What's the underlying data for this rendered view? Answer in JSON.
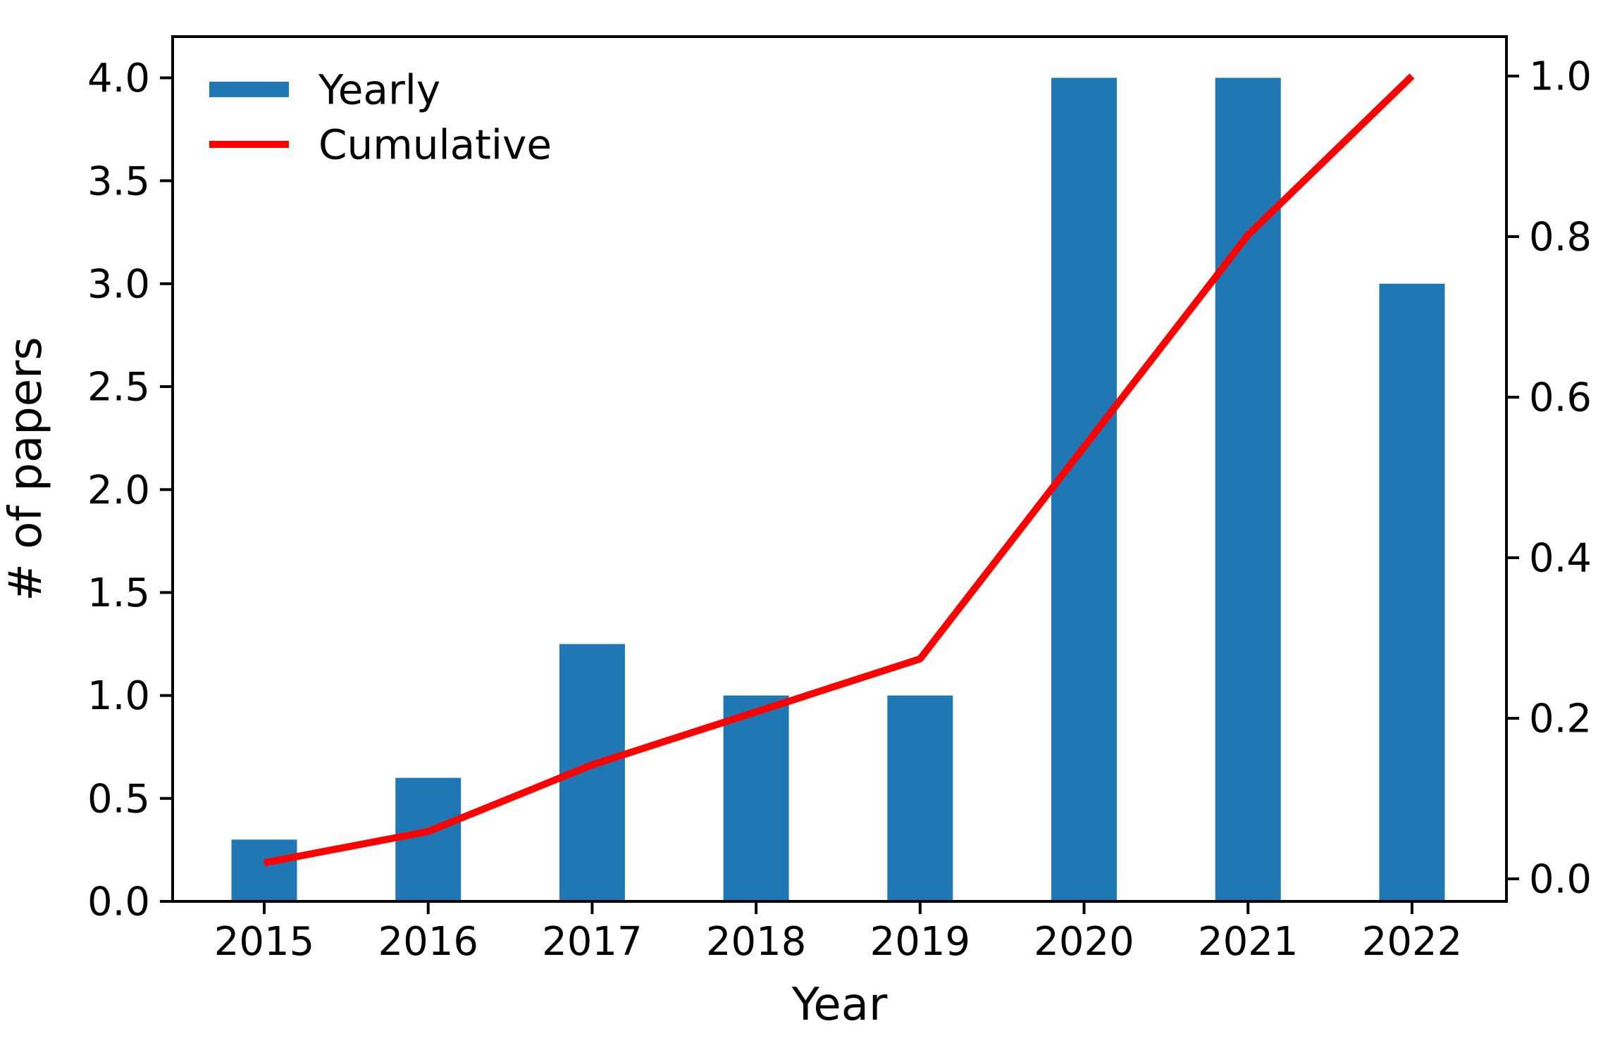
{
  "chart_data": {
    "type": "bar+line",
    "title": "",
    "xlabel": "Year",
    "ylabel_left": "# of papers",
    "categories": [
      "2015",
      "2016",
      "2017",
      "2018",
      "2019",
      "2020",
      "2021",
      "2022"
    ],
    "series": [
      {
        "name": "Yearly",
        "type": "bar",
        "axis": "left",
        "color": "#1f77b4",
        "values": [
          0.3,
          0.6,
          1.25,
          1.0,
          1.0,
          4.0,
          4.0,
          3.0
        ]
      },
      {
        "name": "Cumulative",
        "type": "line",
        "axis": "right",
        "color": "#ff0000",
        "values": [
          0.02,
          0.059,
          0.142,
          0.208,
          0.274,
          0.538,
          0.802,
          1.0
        ]
      }
    ],
    "left_axis": {
      "tick_labels": [
        "0.0",
        "0.5",
        "1.0",
        "1.5",
        "2.0",
        "2.5",
        "3.0",
        "3.5",
        "4.0"
      ],
      "tick_values": [
        0.0,
        0.5,
        1.0,
        1.5,
        2.0,
        2.5,
        3.0,
        3.5,
        4.0
      ],
      "range": [
        0.0,
        4.2
      ]
    },
    "right_axis": {
      "tick_labels": [
        "0.0",
        "0.2",
        "0.4",
        "0.6",
        "0.8",
        "1.0"
      ],
      "tick_values": [
        0.0,
        0.2,
        0.4,
        0.6,
        0.8,
        1.0
      ],
      "range": [
        -0.028,
        1.049
      ]
    },
    "legend": {
      "position": "upper-left",
      "entries": [
        "Yearly",
        "Cumulative"
      ]
    },
    "grid": false,
    "colors": {
      "bar": "#1f77b4",
      "line": "#ff0000",
      "axes": "#000000",
      "background": "#ffffff"
    }
  }
}
